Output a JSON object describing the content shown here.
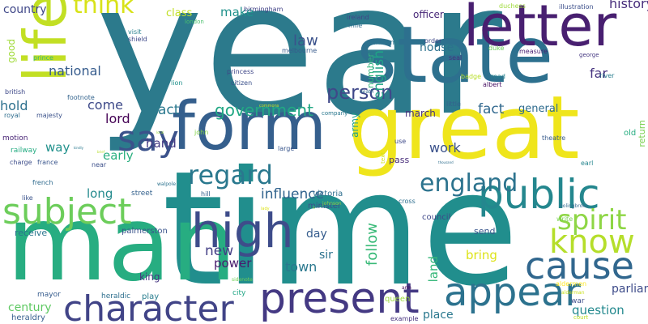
{
  "words": [
    {
      "text": "year",
      "color": "#2c7a8c"
    },
    {
      "text": "time",
      "color": "#218e8d"
    },
    {
      "text": "man",
      "color": "#27ad81"
    },
    {
      "text": "great",
      "color": "#efe51c"
    },
    {
      "text": "state",
      "color": "#2d708e"
    },
    {
      "text": "life",
      "color": "#c2df23"
    },
    {
      "text": "form",
      "color": "#355f8d"
    },
    {
      "text": "letter",
      "color": "#481f70"
    },
    {
      "text": "public",
      "color": "#24878e"
    },
    {
      "text": "present",
      "color": "#443983"
    },
    {
      "text": "character",
      "color": "#414487"
    },
    {
      "text": "appear",
      "color": "#2c728e"
    },
    {
      "text": "high",
      "color": "#3e4c8a"
    },
    {
      "text": "subject",
      "color": "#6ccd5a"
    },
    {
      "text": "know",
      "color": "#b5de2b"
    },
    {
      "text": "cause",
      "color": "#31678e"
    },
    {
      "text": "say",
      "color": "#3b528b"
    },
    {
      "text": "regard",
      "color": "#2a788e"
    },
    {
      "text": "spirit",
      "color": "#8ed645"
    },
    {
      "text": "england",
      "color": "#2c738e"
    },
    {
      "text": "think",
      "color": "#d8e219"
    },
    {
      "text": "person",
      "color": "#3f4889"
    },
    {
      "text": "government",
      "color": "#22a884"
    },
    {
      "text": "influence",
      "color": "#32648e"
    },
    {
      "text": "history",
      "color": "#472d7b"
    },
    {
      "text": "law",
      "color": "#3b528b"
    },
    {
      "text": "english",
      "color": "#20a386"
    },
    {
      "text": "national",
      "color": "#365c8d"
    },
    {
      "text": "hold",
      "color": "#2d708e"
    },
    {
      "text": "come",
      "color": "#3e4a89"
    },
    {
      "text": "lord",
      "color": "#440154"
    },
    {
      "text": "fact",
      "color": "#31688e"
    },
    {
      "text": "hand",
      "color": "#443a83"
    },
    {
      "text": "work",
      "color": "#3b528b"
    },
    {
      "text": "early",
      "color": "#29af7f"
    },
    {
      "text": "long",
      "color": "#238a8d"
    },
    {
      "text": "new",
      "color": "#433e85"
    },
    {
      "text": "power",
      "color": "#481b6d"
    },
    {
      "text": "town",
      "color": "#2a788e"
    },
    {
      "text": "follow",
      "color": "#38b977"
    },
    {
      "text": "bring",
      "color": "#dde318"
    },
    {
      "text": "parliament",
      "color": "#3e4c8a"
    },
    {
      "text": "question",
      "color": "#23898e"
    },
    {
      "text": "century",
      "color": "#5ec962"
    },
    {
      "text": "country",
      "color": "#3f4788"
    },
    {
      "text": "make",
      "color": "#20928c"
    },
    {
      "text": "class",
      "color": "#c0df25"
    },
    {
      "text": "house",
      "color": "#2d718e"
    },
    {
      "text": "far",
      "color": "#46337f"
    },
    {
      "text": "general",
      "color": "#2f6c8e"
    },
    {
      "text": "day",
      "color": "#365d8d"
    },
    {
      "text": "sir",
      "color": "#2c728e"
    },
    {
      "text": "land",
      "color": "#35b779"
    },
    {
      "text": "way",
      "color": "#21918c"
    },
    {
      "text": "act",
      "color": "#2a788e"
    },
    {
      "text": "good",
      "color": "#a0da39"
    },
    {
      "text": "march",
      "color": "#46327e"
    },
    {
      "text": "king",
      "color": "#453581"
    },
    {
      "text": "place",
      "color": "#2a788e"
    },
    {
      "text": "number",
      "color": "#31b57b"
    },
    {
      "text": "officer",
      "color": "#482878"
    },
    {
      "text": "army",
      "color": "#1fa088"
    },
    {
      "text": "victoria",
      "color": "#2e6e8e"
    },
    {
      "text": "minister",
      "color": "#3d4e8a"
    },
    {
      "text": "send",
      "color": "#39568c"
    },
    {
      "text": "return",
      "color": "#7ad151"
    },
    {
      "text": "old",
      "color": "#27ad81"
    },
    {
      "text": "pass",
      "color": "#472c7a"
    },
    {
      "text": "receive",
      "color": "#2b758e"
    },
    {
      "text": "palmerston",
      "color": "#3a548c"
    },
    {
      "text": "council",
      "color": "#3f4889"
    },
    {
      "text": "street",
      "color": "#34618d"
    },
    {
      "text": "queen",
      "color": "#9bd93c"
    },
    {
      "text": "war",
      "color": "#3d4d8a"
    },
    {
      "text": "heraldry",
      "color": "#355e8d"
    },
    {
      "text": "mayor",
      "color": "#365c8d"
    },
    {
      "text": "heraldic",
      "color": "#2e6f8e"
    },
    {
      "text": "play",
      "color": "#287d8e"
    },
    {
      "text": "city",
      "color": "#21a685"
    },
    {
      "text": "motion",
      "color": "#482475"
    },
    {
      "text": "railway",
      "color": "#25ac82"
    },
    {
      "text": "charge",
      "color": "#3d4d8a"
    },
    {
      "text": "france",
      "color": "#39558c"
    },
    {
      "text": "french",
      "color": "#2f6b8e"
    },
    {
      "text": "like",
      "color": "#3a538b"
    },
    {
      "text": "british",
      "color": "#3e4989"
    },
    {
      "text": "royal",
      "color": "#2e6d8e"
    },
    {
      "text": "majesty",
      "color": "#3b528b"
    },
    {
      "text": "footnote",
      "color": "#33638d"
    },
    {
      "text": "visit",
      "color": "#27808e"
    },
    {
      "text": "shield",
      "color": "#3e4989"
    },
    {
      "text": "london",
      "color": "#4ac16d"
    },
    {
      "text": "birmingham",
      "color": "#414287"
    },
    {
      "text": "ireland",
      "color": "#404588"
    },
    {
      "text": "mile",
      "color": "#2e6e8e"
    },
    {
      "text": "melbourne",
      "color": "#375a8c"
    },
    {
      "text": "common",
      "color": "#2c738e"
    },
    {
      "text": "order",
      "color": "#3f4889"
    },
    {
      "text": "seal",
      "color": "#46327e"
    },
    {
      "text": "duke",
      "color": "#6ccd5a"
    },
    {
      "text": "measure",
      "color": "#482173"
    },
    {
      "text": "duchess",
      "color": "#9fda3a"
    },
    {
      "text": "illustration",
      "color": "#3c4f8a"
    },
    {
      "text": "george",
      "color": "#453882"
    },
    {
      "text": "river",
      "color": "#287d8e"
    },
    {
      "text": "albert",
      "color": "#471063"
    },
    {
      "text": "badge",
      "color": "#b8de29"
    },
    {
      "text": "road",
      "color": "#25848e"
    },
    {
      "text": "little",
      "color": "#33628d"
    },
    {
      "text": "princess",
      "color": "#3f4788"
    },
    {
      "text": "citizen",
      "color": "#3b518b"
    },
    {
      "text": "prince",
      "color": "#37b878"
    },
    {
      "text": "lion",
      "color": "#21918c"
    },
    {
      "text": "death",
      "color": "#31688e"
    },
    {
      "text": "company",
      "color": "#2a778e"
    },
    {
      "text": "use",
      "color": "#3e4a89"
    },
    {
      "text": "large",
      "color": "#39568c"
    },
    {
      "text": "hill",
      "color": "#34608d"
    },
    {
      "text": "walpole",
      "color": "#2c728e"
    },
    {
      "text": "john",
      "color": "#83d34b"
    },
    {
      "text": "near",
      "color": "#3c4f8a"
    },
    {
      "text": "cross",
      "color": "#2e6e8e"
    },
    {
      "text": "johnson",
      "color": "#8bd646"
    },
    {
      "text": "theatre",
      "color": "#375a8c"
    },
    {
      "text": "earl",
      "color": "#25858e"
    },
    {
      "text": "bolingbroke",
      "color": "#30698e"
    },
    {
      "text": "write",
      "color": "#79d151"
    },
    {
      "text": "aldermen",
      "color": "#fde725"
    },
    {
      "text": "alderman",
      "color": "#cae11f"
    },
    {
      "text": "court",
      "color": "#bddf26"
    },
    {
      "text": "example",
      "color": "#46337f"
    },
    {
      "text": "arm",
      "color": "#450559"
    },
    {
      "text": "sidenote",
      "color": "#70cf57"
    },
    {
      "text": "commons",
      "color": "#c8e020"
    },
    {
      "text": "lady",
      "color": "#dde318"
    },
    {
      "text": "text",
      "color": "#d2e21b"
    },
    {
      "text": "thousand",
      "color": "#2e6e8e"
    },
    {
      "text": "local",
      "color": "#9bd93c"
    },
    {
      "text": "lil",
      "color": "#7ad151"
    },
    {
      "text": "kindly",
      "color": "#2a788e"
    },
    {
      "text": "brief",
      "color": "#b5de2b"
    }
  ]
}
